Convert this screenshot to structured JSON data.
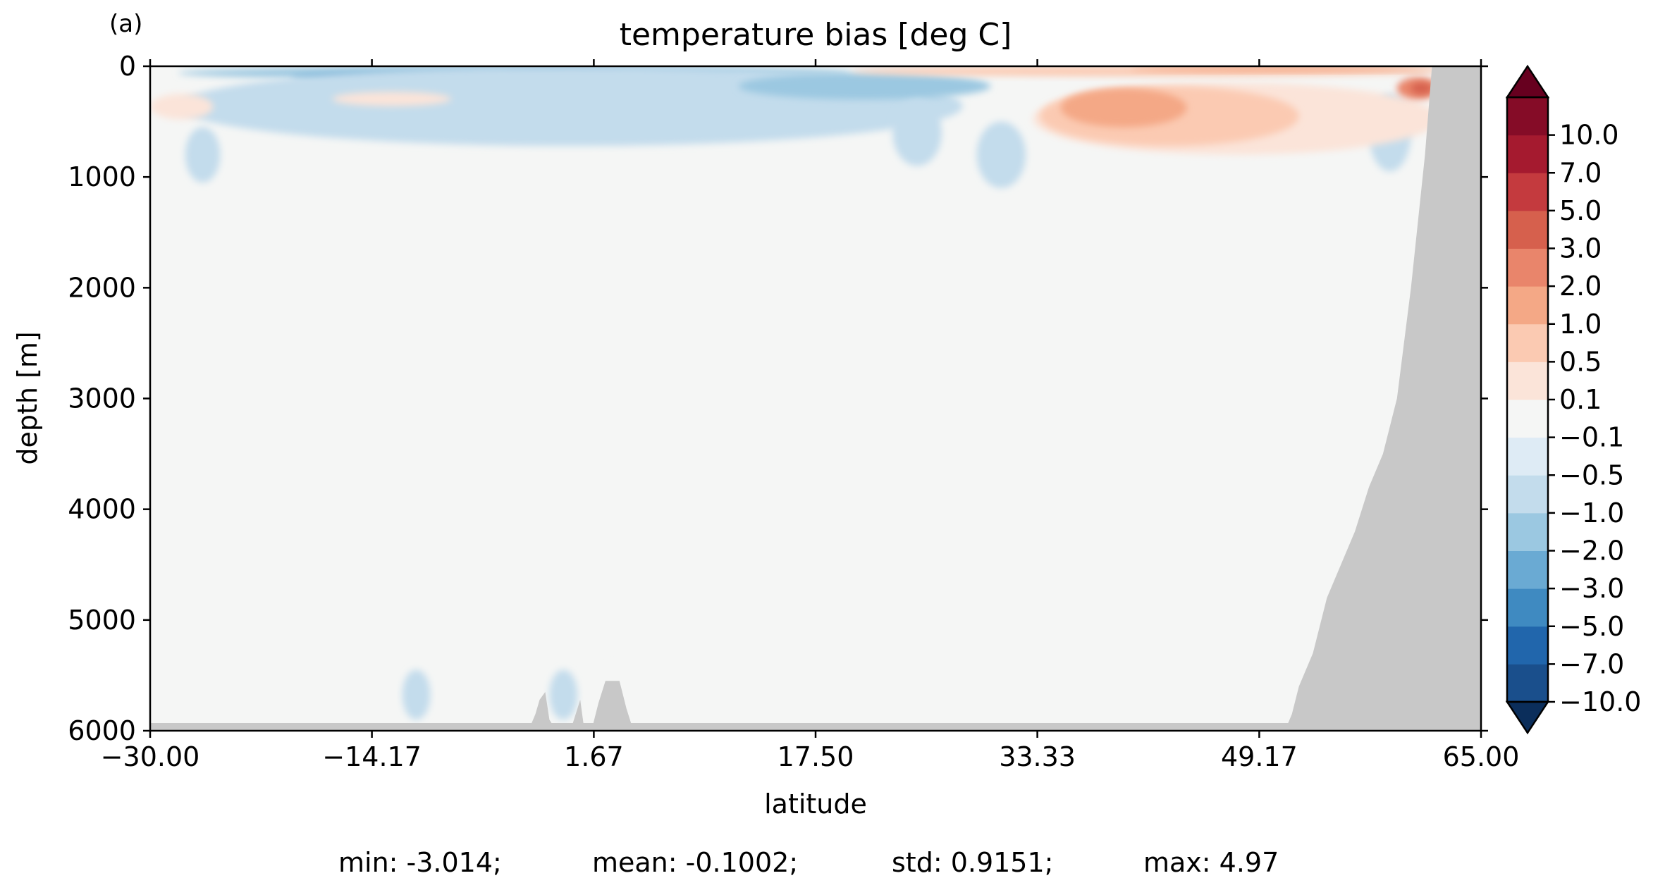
{
  "chart_data": {
    "type": "heatmap",
    "panel_label": "(a)",
    "title": "temperature bias [deg C]",
    "xlabel": "latitude",
    "ylabel": "depth [m]",
    "xlim": [
      -30.0,
      65.0
    ],
    "ylim": [
      6000,
      0
    ],
    "x_ticks": [
      -30.0,
      -14.17,
      1.67,
      17.5,
      33.33,
      49.17,
      65.0
    ],
    "x_tick_labels": [
      "−30.00",
      "−14.17",
      "1.67",
      "17.50",
      "33.33",
      "49.17",
      "65.00"
    ],
    "y_ticks": [
      0,
      1000,
      2000,
      3000,
      4000,
      5000,
      6000
    ],
    "y_tick_labels": [
      "0",
      "1000",
      "2000",
      "3000",
      "4000",
      "5000",
      "6000"
    ],
    "colorbar": {
      "levels": [
        -10.0,
        -7.0,
        -5.0,
        -3.0,
        -2.0,
        -1.0,
        -0.5,
        -0.1,
        0.1,
        0.5,
        1.0,
        2.0,
        3.0,
        5.0,
        7.0,
        10.0
      ],
      "level_labels": [
        "−10.0",
        "−7.0",
        "−5.0",
        "−3.0",
        "−2.0",
        "−1.0",
        "−0.5",
        "−0.1",
        "0.1",
        "0.5",
        "1.0",
        "2.0",
        "3.0",
        "5.0",
        "7.0",
        "10.0"
      ],
      "colors": [
        "#1a4f8c",
        "#2166ac",
        "#3f8ac1",
        "#6aaad3",
        "#9bc8e1",
        "#c3dcec",
        "#deebf5",
        "#f5f6f5",
        "#fbe4d9",
        "#fbcab2",
        "#f4a886",
        "#e9856b",
        "#d6604d",
        "#c43a3e",
        "#a51a2f",
        "#850c27"
      ],
      "under_color": "#0b2e5b",
      "over_color": "#67001f",
      "extend": "both"
    },
    "land_color": "#c8c8c8",
    "background_color": "#f5f6f5",
    "features": [
      {
        "kind": "anomaly",
        "value": -1.0,
        "lat": [
          -28.0,
          20.0
        ],
        "depth": [
          0,
          120
        ]
      },
      {
        "kind": "anomaly",
        "value": -2.0,
        "lat": [
          -20.0,
          12.0
        ],
        "depth": [
          40,
          170
        ]
      },
      {
        "kind": "anomaly",
        "value": -3.0,
        "lat": [
          -5.0,
          4.0
        ],
        "depth": [
          50,
          120
        ]
      },
      {
        "kind": "anomaly",
        "value": -0.5,
        "lat": [
          -28.0,
          28.0
        ],
        "depth": [
          0,
          720
        ]
      },
      {
        "kind": "anomaly",
        "value": 0.5,
        "lat": [
          -30.0,
          -25.5
        ],
        "depth": [
          250,
          480
        ]
      },
      {
        "kind": "anomaly",
        "value": 0.5,
        "lat": [
          -17.0,
          -8.5
        ],
        "depth": [
          230,
          360
        ]
      },
      {
        "kind": "anomaly",
        "value": -1.0,
        "lat": [
          12.0,
          30.0
        ],
        "depth": [
          60,
          300
        ]
      },
      {
        "kind": "anomaly",
        "value": -0.5,
        "lat": [
          23.0,
          26.5
        ],
        "depth": [
          300,
          900
        ]
      },
      {
        "kind": "anomaly",
        "value": -0.5,
        "lat": [
          29.0,
          32.5
        ],
        "depth": [
          500,
          1100
        ]
      },
      {
        "kind": "anomaly",
        "value": -0.5,
        "lat": [
          -27.5,
          -25.0
        ],
        "depth": [
          550,
          1050
        ]
      },
      {
        "kind": "anomaly",
        "value": -0.5,
        "lat": [
          57.0,
          60.0
        ],
        "depth": [
          250,
          950
        ]
      },
      {
        "kind": "anomaly",
        "value": 0.5,
        "lat": [
          33.0,
          62.0
        ],
        "depth": [
          150,
          800
        ]
      },
      {
        "kind": "anomaly",
        "value": 1.0,
        "lat": [
          33.5,
          52.0
        ],
        "depth": [
          180,
          720
        ]
      },
      {
        "kind": "anomaly",
        "value": 2.0,
        "lat": [
          35.0,
          44.0
        ],
        "depth": [
          200,
          550
        ]
      },
      {
        "kind": "anomaly",
        "value": 1.0,
        "lat": [
          20.0,
          62.0
        ],
        "depth": [
          0,
          90
        ]
      },
      {
        "kind": "anomaly",
        "value": 2.0,
        "lat": [
          40.0,
          62.0
        ],
        "depth": [
          0,
          50
        ]
      },
      {
        "kind": "anomaly",
        "value": 3.0,
        "lat": [
          59.0,
          62.0
        ],
        "depth": [
          100,
          300
        ]
      },
      {
        "kind": "anomaly",
        "value": 5.0,
        "lat": [
          60.0,
          61.5
        ],
        "depth": [
          150,
          250
        ]
      },
      {
        "kind": "anomaly",
        "value": -0.5,
        "lat": [
          -12.0,
          -10.0
        ],
        "depth": [
          5450,
          5900
        ]
      },
      {
        "kind": "anomaly",
        "value": -0.5,
        "lat": [
          -1.5,
          0.5
        ],
        "depth": [
          5450,
          5900
        ]
      },
      {
        "kind": "anomaly",
        "value": 0.1,
        "lat": [
          -8.5,
          -7.5
        ],
        "depth": [
          5700,
          6000
        ]
      },
      {
        "kind": "anomaly",
        "value": 0.1,
        "lat": [
          2.5,
          3.5
        ],
        "depth": [
          5400,
          5750
        ]
      }
    ],
    "bathymetry": {
      "floor": [
        [
          -30.0,
          5930
        ],
        [
          65.0,
          5930
        ]
      ],
      "ridges": [
        [
          [
            -3.0,
            6000
          ],
          [
            -2.5,
            5850
          ],
          [
            -2.2,
            5720
          ],
          [
            -1.8,
            5650
          ],
          [
            -1.5,
            5900
          ],
          [
            -1.0,
            6000
          ]
        ],
        [
          [
            0.0,
            6000
          ],
          [
            0.5,
            5800
          ],
          [
            0.7,
            5720
          ],
          [
            1.0,
            6000
          ]
        ],
        [
          [
            1.5,
            6000
          ],
          [
            2.0,
            5750
          ],
          [
            2.5,
            5550
          ],
          [
            3.5,
            5550
          ],
          [
            4.0,
            5800
          ],
          [
            4.5,
            6000
          ]
        ]
      ],
      "coast": [
        [
          51.0,
          6000
        ],
        [
          51.5,
          5850
        ],
        [
          52.0,
          5600
        ],
        [
          53.0,
          5300
        ],
        [
          54.0,
          4800
        ],
        [
          55.0,
          4500
        ],
        [
          56.0,
          4200
        ],
        [
          57.0,
          3800
        ],
        [
          58.0,
          3500
        ],
        [
          59.0,
          3000
        ],
        [
          60.0,
          2000
        ],
        [
          61.0,
          800
        ],
        [
          61.5,
          0
        ],
        [
          65.0,
          0
        ],
        [
          65.0,
          6000
        ]
      ]
    },
    "stats": {
      "min": "min: -3.014;",
      "mean": "mean: -0.1002;",
      "std": "std: 0.9151;",
      "max": "max: 4.97"
    }
  }
}
